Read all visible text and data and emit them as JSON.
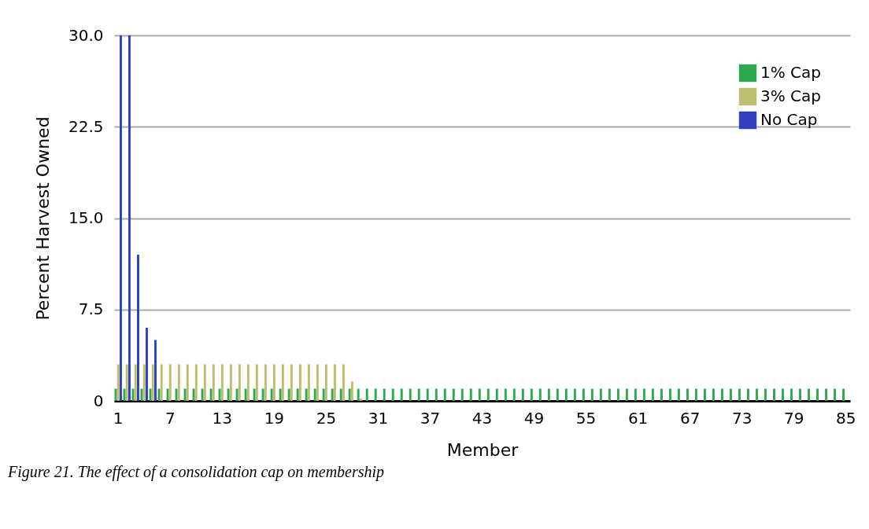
{
  "chart_data": {
    "type": "bar",
    "xlabel": "Member",
    "ylabel": "Percent Harvest Owned",
    "annotations": [
      "Figure 21. The effect of  a consolidation cap on membership"
    ],
    "categories": [
      "1",
      null,
      null,
      null,
      null,
      null,
      "7",
      null,
      null,
      null,
      null,
      null,
      "13",
      null,
      null,
      null,
      null,
      null,
      "19",
      null,
      null,
      null,
      null,
      null,
      "25",
      null,
      null,
      null,
      null,
      null,
      "31",
      null,
      null,
      null,
      null,
      null,
      "37",
      null,
      null,
      null,
      null,
      null,
      "43",
      null,
      null,
      null,
      null,
      null,
      "49",
      null,
      null,
      null,
      null,
      null,
      "55",
      null,
      null,
      null,
      null,
      null,
      "61",
      null,
      null,
      null,
      null,
      null,
      "67",
      null,
      null,
      null,
      null,
      null,
      "73",
      null,
      null,
      null,
      null,
      null,
      "79",
      null,
      null,
      null,
      null,
      null,
      "85"
    ],
    "series": [
      {
        "name": "1% Cap",
        "color": "#2ca84f",
        "values": [
          1,
          1,
          1,
          1,
          1,
          1,
          1,
          1,
          1,
          1,
          1,
          1,
          1,
          1,
          1,
          1,
          1,
          1,
          1,
          1,
          1,
          1,
          1,
          1,
          1,
          1,
          1,
          1,
          1,
          1,
          1,
          1,
          1,
          1,
          1,
          1,
          1,
          1,
          1,
          1,
          1,
          1,
          1,
          1,
          1,
          1,
          1,
          1,
          1,
          1,
          1,
          1,
          1,
          1,
          1,
          1,
          1,
          1,
          1,
          1,
          1,
          1,
          1,
          1,
          1,
          1,
          1,
          1,
          1,
          1,
          1,
          1,
          1,
          1,
          1,
          1,
          1,
          1,
          1,
          1,
          1,
          1,
          1,
          1,
          1
        ]
      },
      {
        "name": "3% Cap",
        "color": "#bdbd6e",
        "values": [
          3,
          3,
          3,
          3,
          3,
          3,
          3,
          3,
          3,
          3,
          3,
          3,
          3,
          3,
          3,
          3,
          3,
          3,
          3,
          3,
          3,
          3,
          3,
          3,
          3,
          3,
          3,
          1.6,
          0.2,
          null,
          null,
          null,
          null,
          null,
          null,
          null,
          null,
          null,
          null,
          null,
          null,
          null,
          null,
          null,
          null,
          null,
          null,
          null,
          null,
          null,
          null,
          null,
          null,
          null,
          null,
          null,
          null,
          null,
          null,
          null,
          null,
          null,
          null,
          null,
          null,
          null,
          null,
          null,
          null,
          null,
          null,
          null,
          null,
          null,
          null,
          null,
          null,
          null,
          null,
          null,
          null,
          null,
          null,
          null,
          null
        ]
      },
      {
        "name": "No Cap",
        "color": "#2f3fc0",
        "values": [
          30,
          30,
          12,
          6,
          5,
          null,
          null,
          null,
          null,
          null,
          null,
          null,
          null,
          null,
          null,
          null,
          null,
          null,
          null,
          null,
          null,
          null,
          null,
          null,
          null,
          null,
          null,
          null,
          null,
          null,
          null,
          null,
          null,
          null,
          null,
          null,
          null,
          null,
          null,
          null,
          null,
          null,
          null,
          null,
          null,
          null,
          null,
          null,
          null,
          null,
          null,
          null,
          null,
          null,
          null,
          null,
          null,
          null,
          null,
          null,
          null,
          null,
          null,
          null,
          null,
          null,
          null,
          null,
          null,
          null,
          null,
          null,
          null,
          null,
          null,
          null,
          null,
          null,
          null,
          null,
          null,
          null,
          null,
          null,
          null
        ]
      }
    ],
    "ylim": [
      0,
      30
    ],
    "yticks": [
      0,
      {
        "value": 7.5,
        "label": "7.5"
      },
      {
        "value": 15,
        "label": "15.0"
      },
      {
        "value": 22.5,
        "label": "22.5"
      },
      {
        "value": 30,
        "label": "30.0"
      }
    ],
    "grid": "y",
    "legend": "top right"
  }
}
